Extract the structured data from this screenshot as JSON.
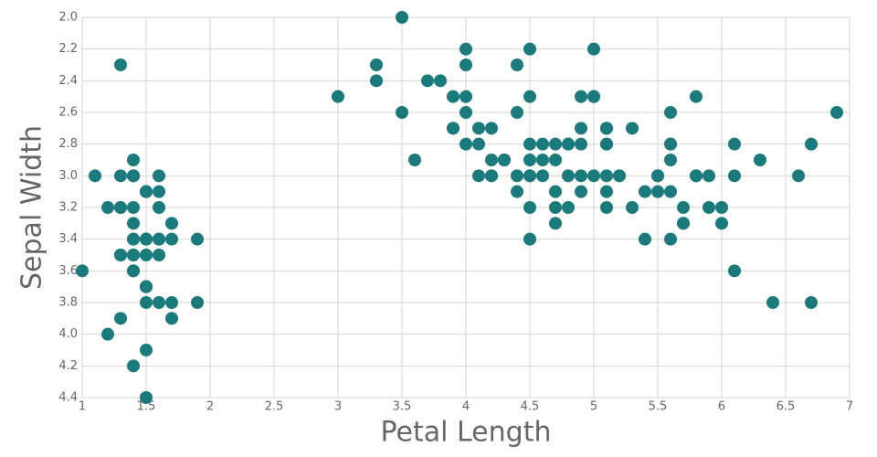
{
  "chart_data": {
    "type": "scatter",
    "x_label": "Petal Length",
    "y_label": "Sepal Width",
    "color": "#1b7a7b",
    "grid": true,
    "xlim": [
      1,
      7
    ],
    "xticks": [
      1,
      1.5,
      2,
      2.5,
      3,
      3.5,
      4,
      4.5,
      5,
      5.5,
      6,
      6.5,
      7
    ],
    "ylim": [
      4.4,
      2.0
    ],
    "yticks": [
      {
        "value": 2,
        "label": "2.0"
      },
      2.2,
      2.4,
      2.6,
      2.8,
      {
        "value": 3,
        "label": "3.0"
      },
      3.2,
      3.4,
      3.6,
      3.8,
      {
        "value": 4,
        "label": "4.0"
      },
      4.2,
      4.4
    ],
    "x": [
      1.4,
      1.4,
      1.3,
      1.5,
      1.4,
      1.7,
      1.4,
      1.5,
      1.4,
      1.5,
      1.5,
      1.6,
      1.4,
      1.1,
      1.2,
      1.5,
      1.3,
      1.4,
      1.7,
      1.5,
      1.7,
      1.5,
      1.0,
      1.7,
      1.9,
      1.6,
      1.6,
      1.5,
      1.4,
      1.6,
      1.6,
      1.5,
      1.5,
      1.4,
      1.5,
      1.2,
      1.3,
      1.4,
      1.3,
      1.5,
      1.3,
      1.3,
      1.3,
      1.6,
      1.9,
      1.4,
      1.6,
      1.4,
      1.5,
      1.4,
      4.7,
      4.5,
      4.9,
      4.0,
      4.6,
      4.5,
      4.7,
      3.3,
      4.6,
      3.9,
      3.5,
      4.2,
      4.0,
      4.7,
      3.6,
      4.4,
      4.5,
      4.1,
      4.5,
      3.9,
      4.8,
      4.0,
      4.9,
      4.7,
      4.3,
      4.4,
      4.8,
      5.0,
      4.5,
      3.5,
      3.8,
      3.7,
      3.9,
      5.1,
      4.5,
      4.5,
      4.7,
      4.4,
      4.1,
      4.0,
      4.4,
      4.6,
      4.0,
      3.3,
      4.2,
      4.2,
      4.2,
      4.3,
      3.0,
      4.1,
      6.0,
      5.1,
      5.9,
      5.6,
      5.8,
      6.6,
      4.5,
      6.3,
      5.8,
      6.1,
      5.1,
      5.3,
      5.5,
      5.0,
      5.1,
      5.3,
      5.5,
      6.7,
      6.9,
      5.0,
      5.7,
      4.9,
      6.7,
      4.9,
      5.7,
      6.0,
      4.8,
      4.9,
      5.6,
      5.8,
      6.1,
      6.4,
      5.6,
      5.1,
      5.6,
      6.1,
      5.6,
      5.5,
      4.8,
      5.4,
      5.6,
      5.1,
      5.1,
      5.9,
      5.7,
      5.2,
      5.0,
      5.2,
      5.4,
      5.1
    ],
    "y": [
      3.5,
      3.0,
      3.2,
      3.1,
      3.6,
      3.9,
      3.4,
      3.4,
      2.9,
      3.1,
      3.7,
      3.4,
      3.0,
      3.0,
      4.0,
      4.4,
      3.9,
      3.5,
      3.8,
      3.8,
      3.4,
      3.7,
      3.6,
      3.3,
      3.4,
      3.0,
      3.4,
      3.5,
      3.4,
      3.2,
      3.1,
      3.4,
      4.1,
      4.2,
      3.1,
      3.2,
      3.5,
      3.6,
      3.0,
      3.4,
      3.5,
      2.3,
      3.2,
      3.5,
      3.8,
      3.0,
      3.8,
      3.2,
      3.7,
      3.3,
      3.2,
      3.2,
      3.1,
      2.3,
      2.8,
      2.8,
      3.3,
      2.4,
      2.9,
      2.7,
      2.0,
      3.0,
      2.2,
      2.9,
      2.9,
      3.1,
      3.0,
      2.7,
      2.2,
      2.5,
      3.2,
      2.8,
      2.5,
      2.8,
      2.9,
      3.0,
      2.8,
      3.0,
      2.9,
      2.6,
      2.4,
      2.4,
      2.7,
      2.7,
      3.0,
      3.4,
      3.1,
      2.3,
      3.0,
      2.5,
      2.6,
      3.0,
      2.6,
      2.3,
      2.7,
      3.0,
      2.9,
      2.9,
      2.5,
      2.8,
      3.3,
      2.7,
      3.0,
      2.9,
      3.0,
      3.0,
      2.5,
      2.9,
      2.5,
      3.6,
      3.2,
      2.7,
      3.0,
      2.5,
      2.8,
      3.2,
      3.0,
      3.8,
      2.6,
      2.2,
      3.2,
      2.8,
      2.8,
      2.7,
      3.3,
      3.2,
      2.8,
      3.0,
      2.8,
      3.0,
      2.8,
      3.8,
      2.8,
      2.8,
      2.6,
      3.0,
      3.4,
      3.1,
      3.0,
      3.1,
      3.1,
      3.1,
      2.7,
      3.2,
      3.3,
      3.0,
      2.5,
      3.0,
      3.4,
      3.0
    ]
  }
}
